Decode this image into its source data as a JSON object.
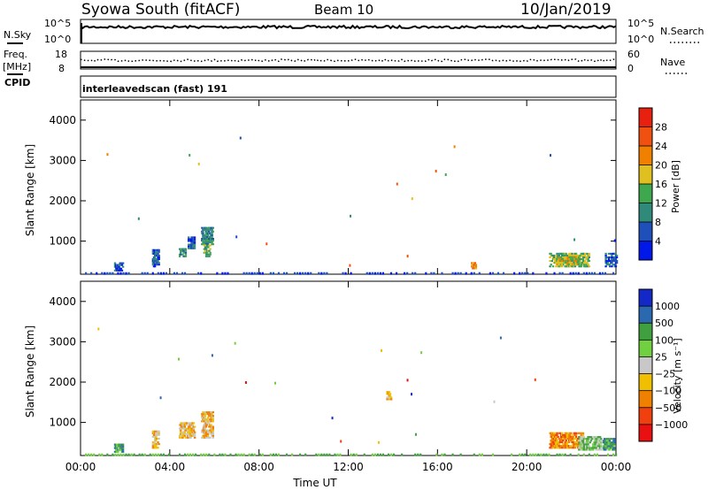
{
  "header": {
    "station": "Syowa South (fitACF)",
    "beam": "Beam 10",
    "date": "10/Jan/2019"
  },
  "status_panel": {
    "left_labels": [
      "N.Sky",
      "Freq.",
      "[MHz]",
      "CPID"
    ],
    "right_labels": [
      "N.Search",
      "Nave"
    ],
    "nsky_ticks": [
      "10^5",
      "10^0"
    ],
    "nsearch_ticks": [
      "10^5",
      "10^0"
    ],
    "freq_ticks": [
      "18",
      "8"
    ],
    "nave_ticks": [
      "60",
      "0"
    ],
    "cpid_text": "interleavedscan (fast) 191"
  },
  "chart_data": [
    {
      "type": "heatmap",
      "panel": "power",
      "ylabel": "Slant Range [km]",
      "xlabel": "",
      "ylim": [
        180,
        4500
      ],
      "yticks": [
        "1000",
        "2000",
        "3000",
        "4000"
      ],
      "xticks": [
        "00:00",
        "04:00",
        "08:00",
        "12:00",
        "16:00",
        "20:00",
        "00:00"
      ],
      "colorbar": {
        "label": "Power [dB]",
        "ticks": [
          "4",
          "8",
          "12",
          "16",
          "20",
          "24",
          "28"
        ],
        "colors": [
          "#0018e8",
          "#1f4fb8",
          "#2f8a7a",
          "#3fa84f",
          "#e0c020",
          "#f08000",
          "#f05010",
          "#e82010"
        ]
      },
      "echo_regions": [
        {
          "t0": 1.5,
          "t1": 1.9,
          "r0": 250,
          "r1": 450,
          "level": 1
        },
        {
          "t0": 3.2,
          "t1": 3.5,
          "r0": 350,
          "r1": 800,
          "level": 1
        },
        {
          "t0": 4.4,
          "t1": 4.7,
          "r0": 600,
          "r1": 800,
          "level": 2
        },
        {
          "t0": 4.8,
          "t1": 5.1,
          "r0": 800,
          "r1": 1100,
          "level": 1
        },
        {
          "t0": 5.4,
          "t1": 5.9,
          "r0": 900,
          "r1": 1350,
          "level": 2
        },
        {
          "t0": 5.5,
          "t1": 5.8,
          "r0": 600,
          "r1": 900,
          "level": 3
        },
        {
          "t0": 17.5,
          "t1": 17.7,
          "r0": 300,
          "r1": 450,
          "level": 5
        },
        {
          "t0": 21.0,
          "t1": 22.8,
          "r0": 350,
          "r1": 700,
          "level": 3
        },
        {
          "t0": 21.3,
          "t1": 22.3,
          "r0": 400,
          "r1": 600,
          "level": 4
        },
        {
          "t0": 23.5,
          "t1": 24.0,
          "r0": 350,
          "r1": 700,
          "level": 1
        }
      ]
    },
    {
      "type": "heatmap",
      "panel": "velocity",
      "ylabel": "Slant Range [km]",
      "xlabel": "Time UT",
      "ylim": [
        180,
        4500
      ],
      "yticks": [
        "1000",
        "2000",
        "3000",
        "4000"
      ],
      "xticks": [
        "00:00",
        "04:00",
        "08:00",
        "12:00",
        "16:00",
        "20:00",
        "00:00"
      ],
      "colorbar": {
        "label": "Velocity [m s⁻¹]",
        "ticks": [
          "1000",
          "500",
          "100",
          "25",
          "−25",
          "−100",
          "−500",
          "−1000"
        ],
        "colors": [
          "#1428c8",
          "#2a68b0",
          "#40a040",
          "#70d040",
          "#c8c8c8",
          "#f0c000",
          "#f08000",
          "#f04010",
          "#e81010"
        ]
      },
      "echo_regions": [
        {
          "t0": 1.5,
          "t1": 1.9,
          "r0": 250,
          "r1": 450,
          "level": 2
        },
        {
          "t0": 3.2,
          "t1": 3.5,
          "r0": 350,
          "r1": 800,
          "level": 5
        },
        {
          "t0": 4.4,
          "t1": 5.1,
          "r0": 600,
          "r1": 1000,
          "level": 5
        },
        {
          "t0": 5.4,
          "t1": 5.9,
          "r0": 600,
          "r1": 1250,
          "level": 5
        },
        {
          "t0": 13.7,
          "t1": 13.9,
          "r0": 1550,
          "r1": 1750,
          "level": 5
        },
        {
          "t0": 21.0,
          "t1": 22.5,
          "r0": 350,
          "r1": 750,
          "level": 6
        },
        {
          "t0": 22.3,
          "t1": 23.3,
          "r0": 300,
          "r1": 650,
          "level": 3
        },
        {
          "t0": 23.4,
          "t1": 23.9,
          "r0": 300,
          "r1": 600,
          "level": 2
        }
      ]
    }
  ]
}
